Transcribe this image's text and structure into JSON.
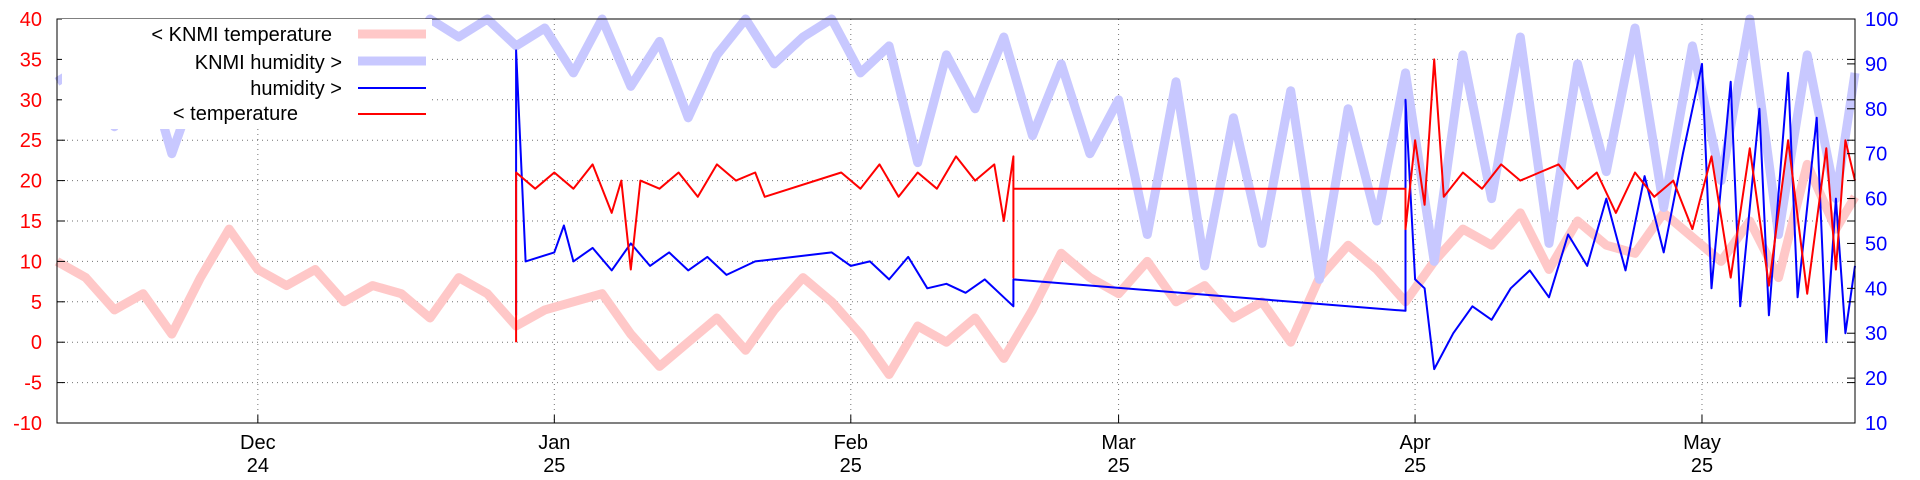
{
  "chart_data": {
    "type": "line",
    "title": "",
    "xlabel": "",
    "ylabel": "",
    "grid": true,
    "legend_position": "top-left",
    "x_range": [
      "2024-11-10",
      "2025-05-17"
    ],
    "y_left": {
      "range": [
        -10,
        40
      ],
      "ticks": [
        "-10",
        "-5",
        "0",
        "5",
        "10",
        "15",
        "20",
        "25",
        "30",
        "35",
        "40"
      ],
      "color": "#ff0000"
    },
    "y_right": {
      "range": [
        10,
        100
      ],
      "ticks": [
        "10",
        "20",
        "30",
        "40",
        "50",
        "60",
        "70",
        "80",
        "90",
        "100"
      ],
      "color": "#0000ff"
    },
    "x_ticks": [
      {
        "line1": "Dec",
        "line2": "24",
        "date": "2024-12-01"
      },
      {
        "line1": "Jan",
        "line2": "25",
        "date": "2025-01-01"
      },
      {
        "line1": "Feb",
        "line2": "25",
        "date": "2025-02-01"
      },
      {
        "line1": "Mar",
        "line2": "25",
        "date": "2025-03-01"
      },
      {
        "line1": "Apr",
        "line2": "25",
        "date": "2025-04-01"
      },
      {
        "line1": "May",
        "line2": "25",
        "date": "2025-05-01"
      }
    ],
    "series": [
      {
        "name": "< KNMI temperature",
        "axis": "left",
        "color": "#ffc8c8",
        "width": 9,
        "points": [
          [
            "2024-11-10",
            10
          ],
          [
            "2024-11-13",
            8
          ],
          [
            "2024-11-16",
            4
          ],
          [
            "2024-11-19",
            6
          ],
          [
            "2024-11-22",
            1
          ],
          [
            "2024-11-25",
            8
          ],
          [
            "2024-11-28",
            14
          ],
          [
            "2024-12-01",
            9
          ],
          [
            "2024-12-04",
            7
          ],
          [
            "2024-12-07",
            9
          ],
          [
            "2024-12-10",
            5
          ],
          [
            "2024-12-13",
            7
          ],
          [
            "2024-12-16",
            6
          ],
          [
            "2024-12-19",
            3
          ],
          [
            "2024-12-22",
            8
          ],
          [
            "2024-12-25",
            6
          ],
          [
            "2024-12-28",
            2
          ],
          [
            "2024-12-31",
            4
          ],
          [
            "2025-01-03",
            5
          ],
          [
            "2025-01-06",
            6
          ],
          [
            "2025-01-09",
            1
          ],
          [
            "2025-01-12",
            -3
          ],
          [
            "2025-01-15",
            0
          ],
          [
            "2025-01-18",
            3
          ],
          [
            "2025-01-21",
            -1
          ],
          [
            "2025-01-24",
            4
          ],
          [
            "2025-01-27",
            8
          ],
          [
            "2025-01-30",
            5
          ],
          [
            "2025-02-02",
            1
          ],
          [
            "2025-02-05",
            -4
          ],
          [
            "2025-02-08",
            2
          ],
          [
            "2025-02-11",
            0
          ],
          [
            "2025-02-14",
            3
          ],
          [
            "2025-02-17",
            -2
          ],
          [
            "2025-02-20",
            4
          ],
          [
            "2025-02-23",
            11
          ],
          [
            "2025-02-26",
            8
          ],
          [
            "2025-03-01",
            6
          ],
          [
            "2025-03-04",
            10
          ],
          [
            "2025-03-07",
            5
          ],
          [
            "2025-03-10",
            7
          ],
          [
            "2025-03-13",
            3
          ],
          [
            "2025-03-16",
            5
          ],
          [
            "2025-03-19",
            0
          ],
          [
            "2025-03-22",
            8
          ],
          [
            "2025-03-25",
            12
          ],
          [
            "2025-03-28",
            9
          ],
          [
            "2025-03-31",
            5
          ],
          [
            "2025-04-03",
            10
          ],
          [
            "2025-04-06",
            14
          ],
          [
            "2025-04-09",
            12
          ],
          [
            "2025-04-12",
            16
          ],
          [
            "2025-04-15",
            9
          ],
          [
            "2025-04-18",
            15
          ],
          [
            "2025-04-21",
            12
          ],
          [
            "2025-04-24",
            11
          ],
          [
            "2025-04-27",
            16
          ],
          [
            "2025-04-30",
            13
          ],
          [
            "2025-05-03",
            10
          ],
          [
            "2025-05-06",
            15
          ],
          [
            "2025-05-09",
            8
          ],
          [
            "2025-05-12",
            22
          ],
          [
            "2025-05-15",
            14
          ],
          [
            "2025-05-17",
            18
          ]
        ]
      },
      {
        "name": "KNMI humidity >",
        "axis": "right",
        "color": "#c8c8ff",
        "width": 9,
        "points": [
          [
            "2024-11-10",
            86
          ],
          [
            "2024-11-13",
            90
          ],
          [
            "2024-11-16",
            76
          ],
          [
            "2024-11-19",
            92
          ],
          [
            "2024-11-22",
            70
          ],
          [
            "2024-11-25",
            88
          ],
          [
            "2024-11-28",
            95
          ],
          [
            "2024-12-01",
            84
          ],
          [
            "2024-12-04",
            90
          ],
          [
            "2024-12-07",
            78
          ],
          [
            "2024-12-10",
            94
          ],
          [
            "2024-12-13",
            98
          ],
          [
            "2024-12-16",
            90
          ],
          [
            "2024-12-19",
            100
          ],
          [
            "2024-12-22",
            96
          ],
          [
            "2024-12-25",
            100
          ],
          [
            "2024-12-28",
            94
          ],
          [
            "2024-12-31",
            98
          ],
          [
            "2025-01-03",
            88
          ],
          [
            "2025-01-06",
            100
          ],
          [
            "2025-01-09",
            85
          ],
          [
            "2025-01-12",
            95
          ],
          [
            "2025-01-15",
            78
          ],
          [
            "2025-01-18",
            92
          ],
          [
            "2025-01-21",
            100
          ],
          [
            "2025-01-24",
            90
          ],
          [
            "2025-01-27",
            96
          ],
          [
            "2025-01-30",
            100
          ],
          [
            "2025-02-02",
            88
          ],
          [
            "2025-02-05",
            94
          ],
          [
            "2025-02-08",
            68
          ],
          [
            "2025-02-11",
            92
          ],
          [
            "2025-02-14",
            80
          ],
          [
            "2025-02-17",
            96
          ],
          [
            "2025-02-20",
            74
          ],
          [
            "2025-02-23",
            90
          ],
          [
            "2025-02-26",
            70
          ],
          [
            "2025-03-01",
            82
          ],
          [
            "2025-03-04",
            52
          ],
          [
            "2025-03-07",
            86
          ],
          [
            "2025-03-10",
            45
          ],
          [
            "2025-03-13",
            78
          ],
          [
            "2025-03-16",
            50
          ],
          [
            "2025-03-19",
            84
          ],
          [
            "2025-03-22",
            42
          ],
          [
            "2025-03-25",
            80
          ],
          [
            "2025-03-28",
            55
          ],
          [
            "2025-03-31",
            88
          ],
          [
            "2025-04-03",
            46
          ],
          [
            "2025-04-06",
            92
          ],
          [
            "2025-04-09",
            60
          ],
          [
            "2025-04-12",
            96
          ],
          [
            "2025-04-15",
            50
          ],
          [
            "2025-04-18",
            90
          ],
          [
            "2025-04-21",
            66
          ],
          [
            "2025-04-24",
            98
          ],
          [
            "2025-04-27",
            58
          ],
          [
            "2025-04-30",
            94
          ],
          [
            "2025-05-03",
            64
          ],
          [
            "2025-05-06",
            100
          ],
          [
            "2025-05-09",
            52
          ],
          [
            "2025-05-12",
            92
          ],
          [
            "2025-05-15",
            60
          ],
          [
            "2025-05-17",
            88
          ]
        ]
      },
      {
        "name": "humidity >",
        "axis": "right",
        "color": "#0000ff",
        "width": 2,
        "points": [
          [
            "2024-12-28",
            34
          ],
          [
            "2024-12-28",
            93
          ],
          [
            "2024-12-29",
            46
          ],
          [
            "2025-01-01",
            48
          ],
          [
            "2025-01-02",
            54
          ],
          [
            "2025-01-03",
            46
          ],
          [
            "2025-01-05",
            49
          ],
          [
            "2025-01-07",
            44
          ],
          [
            "2025-01-09",
            50
          ],
          [
            "2025-01-11",
            45
          ],
          [
            "2025-01-13",
            48
          ],
          [
            "2025-01-15",
            44
          ],
          [
            "2025-01-17",
            47
          ],
          [
            "2025-01-19",
            43
          ],
          [
            "2025-01-22",
            46
          ],
          [
            "2025-01-30",
            48
          ],
          [
            "2025-02-01",
            45
          ],
          [
            "2025-02-03",
            46
          ],
          [
            "2025-02-05",
            42
          ],
          [
            "2025-02-07",
            47
          ],
          [
            "2025-02-09",
            40
          ],
          [
            "2025-02-11",
            41
          ],
          [
            "2025-02-13",
            39
          ],
          [
            "2025-02-15",
            42
          ],
          [
            "2025-02-17",
            38
          ],
          [
            "2025-02-18",
            36
          ],
          [
            "2025-02-18",
            42
          ],
          [
            "2025-03-31",
            35
          ],
          [
            "2025-03-31",
            82
          ],
          [
            "2025-04-01",
            42
          ],
          [
            "2025-04-02",
            40
          ],
          [
            "2025-04-03",
            22
          ],
          [
            "2025-04-05",
            30
          ],
          [
            "2025-04-07",
            36
          ],
          [
            "2025-04-09",
            33
          ],
          [
            "2025-04-11",
            40
          ],
          [
            "2025-04-13",
            44
          ],
          [
            "2025-04-15",
            38
          ],
          [
            "2025-04-17",
            52
          ],
          [
            "2025-04-19",
            45
          ],
          [
            "2025-04-21",
            60
          ],
          [
            "2025-04-23",
            44
          ],
          [
            "2025-04-25",
            65
          ],
          [
            "2025-04-27",
            48
          ],
          [
            "2025-04-29",
            70
          ],
          [
            "2025-05-01",
            90
          ],
          [
            "2025-05-02",
            40
          ],
          [
            "2025-05-04",
            86
          ],
          [
            "2025-05-05",
            36
          ],
          [
            "2025-05-07",
            80
          ],
          [
            "2025-05-08",
            34
          ],
          [
            "2025-05-10",
            88
          ],
          [
            "2025-05-11",
            38
          ],
          [
            "2025-05-13",
            78
          ],
          [
            "2025-05-14",
            28
          ],
          [
            "2025-05-15",
            60
          ],
          [
            "2025-05-16",
            30
          ],
          [
            "2025-05-17",
            45
          ]
        ]
      },
      {
        "name": "< temperature",
        "axis": "left",
        "color": "#ff0000",
        "width": 2,
        "points": [
          [
            "2024-12-28",
            0
          ],
          [
            "2024-12-28",
            21
          ],
          [
            "2024-12-30",
            19
          ],
          [
            "2025-01-01",
            21
          ],
          [
            "2025-01-03",
            19
          ],
          [
            "2025-01-05",
            22
          ],
          [
            "2025-01-07",
            16
          ],
          [
            "2025-01-08",
            20
          ],
          [
            "2025-01-09",
            9
          ],
          [
            "2025-01-10",
            20
          ],
          [
            "2025-01-12",
            19
          ],
          [
            "2025-01-14",
            21
          ],
          [
            "2025-01-16",
            18
          ],
          [
            "2025-01-18",
            22
          ],
          [
            "2025-01-20",
            20
          ],
          [
            "2025-01-22",
            21
          ],
          [
            "2025-01-23",
            18
          ],
          [
            "2025-01-31",
            21
          ],
          [
            "2025-02-02",
            19
          ],
          [
            "2025-02-04",
            22
          ],
          [
            "2025-02-06",
            18
          ],
          [
            "2025-02-08",
            21
          ],
          [
            "2025-02-10",
            19
          ],
          [
            "2025-02-12",
            23
          ],
          [
            "2025-02-14",
            20
          ],
          [
            "2025-02-16",
            22
          ],
          [
            "2025-02-17",
            15
          ],
          [
            "2025-02-18",
            23
          ],
          [
            "2025-02-18",
            8
          ],
          [
            "2025-02-18",
            19
          ],
          [
            "2025-03-31",
            19
          ],
          [
            "2025-03-31",
            14
          ],
          [
            "2025-04-01",
            25
          ],
          [
            "2025-04-02",
            17
          ],
          [
            "2025-04-03",
            35
          ],
          [
            "2025-04-04",
            18
          ],
          [
            "2025-04-06",
            21
          ],
          [
            "2025-04-08",
            19
          ],
          [
            "2025-04-10",
            22
          ],
          [
            "2025-04-12",
            20
          ],
          [
            "2025-04-14",
            21
          ],
          [
            "2025-04-16",
            22
          ],
          [
            "2025-04-18",
            19
          ],
          [
            "2025-04-20",
            21
          ],
          [
            "2025-04-22",
            16
          ],
          [
            "2025-04-24",
            21
          ],
          [
            "2025-04-26",
            18
          ],
          [
            "2025-04-28",
            20
          ],
          [
            "2025-04-30",
            14
          ],
          [
            "2025-05-02",
            23
          ],
          [
            "2025-05-04",
            8
          ],
          [
            "2025-05-06",
            24
          ],
          [
            "2025-05-08",
            7
          ],
          [
            "2025-05-10",
            25
          ],
          [
            "2025-05-12",
            6
          ],
          [
            "2025-05-14",
            24
          ],
          [
            "2025-05-15",
            9
          ],
          [
            "2025-05-16",
            25
          ],
          [
            "2025-05-17",
            20
          ]
        ]
      }
    ],
    "legend": [
      {
        "label": "< KNMI temperature",
        "color": "#ffc8c8",
        "width": 9
      },
      {
        "label": "KNMI humidity >",
        "color": "#c8c8ff",
        "width": 9
      },
      {
        "label": "humidity >",
        "color": "#0000ff",
        "width": 2
      },
      {
        "label": "< temperature",
        "color": "#ff0000",
        "width": 2
      }
    ]
  }
}
